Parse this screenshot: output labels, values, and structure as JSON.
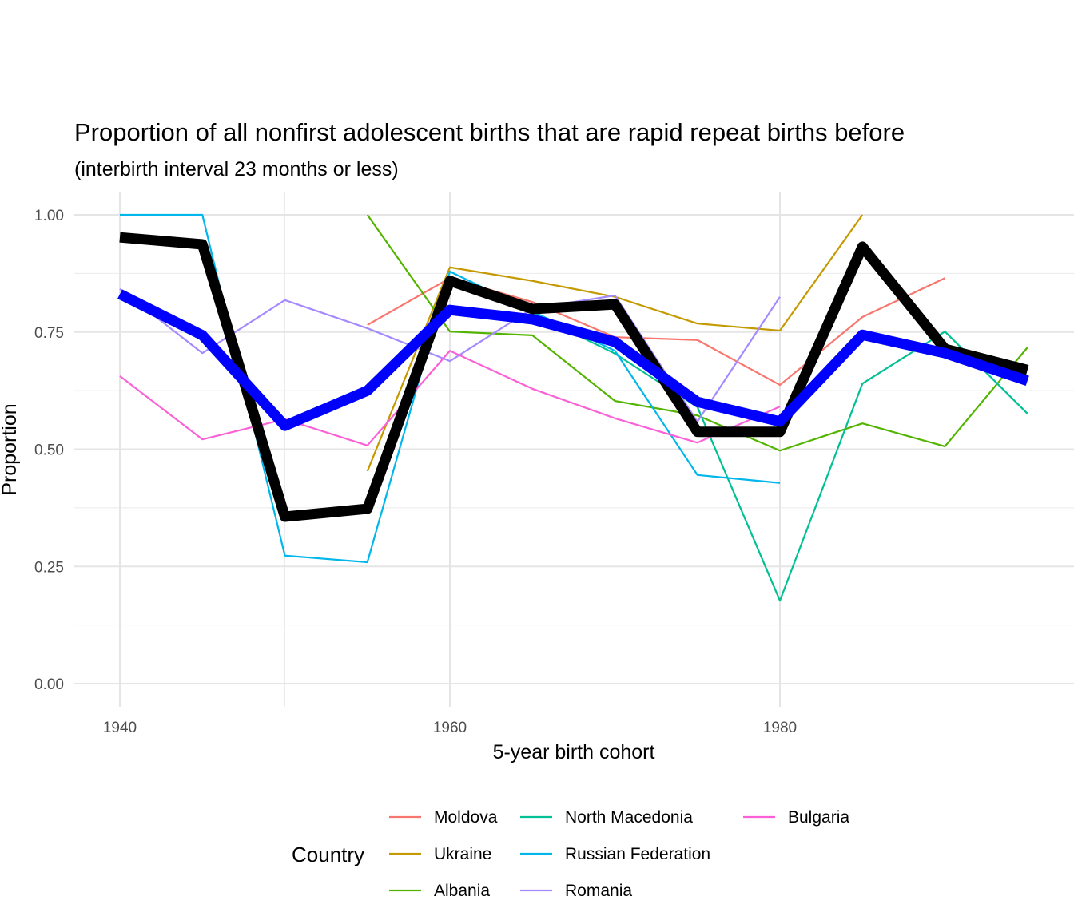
{
  "chart_data": {
    "type": "line",
    "title": "Proportion of all nonfirst adolescent births that are rapid repeat births before",
    "subtitle": "(interbirth interval 23 months or less)",
    "xlabel": "5-year birth cohort",
    "ylabel": "Proportion",
    "xlim": [
      1937,
      1998
    ],
    "ylim": [
      -0.05,
      1.05
    ],
    "xticks": [
      1940,
      1960,
      1980
    ],
    "xtick_labels": [
      "1940",
      "1960",
      "1980"
    ],
    "yticks": [
      0,
      0.25,
      0.5,
      0.75,
      1.0
    ],
    "ytick_labels": [
      "0.00",
      "0.25",
      "0.50",
      "0.75",
      "1.00"
    ],
    "grid": true,
    "legend": {
      "title": "Country",
      "placement": "bottom"
    },
    "series": [
      {
        "name": "Moldova",
        "color": "#F8766D",
        "x": [
          1955,
          1960,
          1965,
          1970,
          1975,
          1980,
          1985,
          1990
        ],
        "y": [
          0.765,
          0.865,
          0.814,
          0.739,
          0.733,
          0.637,
          0.782,
          0.865
        ]
      },
      {
        "name": "Ukraine",
        "color": "#C49A00",
        "x": [
          1955,
          1960,
          1965,
          1970,
          1975,
          1980,
          1985
        ],
        "y": [
          0.453,
          0.888,
          0.859,
          0.825,
          0.768,
          0.753,
          1.0
        ]
      },
      {
        "name": "Albania",
        "color": "#53B400",
        "x": [
          1955,
          1960,
          1965,
          1970,
          1975,
          1980,
          1985,
          1990,
          1995
        ],
        "y": [
          1.0,
          0.751,
          0.743,
          0.603,
          0.572,
          0.497,
          0.555,
          0.506,
          0.717
        ]
      },
      {
        "name": "North Macedonia",
        "color": "#00C094",
        "x": [
          1965,
          1970,
          1975,
          1980,
          1985,
          1990,
          1995
        ],
        "y": [
          0.79,
          0.704,
          0.59,
          0.177,
          0.64,
          0.751,
          0.576
        ]
      },
      {
        "name": "Russian Federation",
        "color": "#00B6EB",
        "x": [
          1940,
          1945,
          1950,
          1955,
          1960,
          1965,
          1970,
          1975,
          1980
        ],
        "y": [
          1.0,
          1.0,
          0.273,
          0.259,
          0.879,
          0.794,
          0.71,
          0.445,
          0.428
        ]
      },
      {
        "name": "Romania",
        "color": "#A58AFF",
        "x": [
          1940,
          1945,
          1950,
          1955,
          1960,
          1965,
          1970,
          1975,
          1980
        ],
        "y": [
          0.842,
          0.705,
          0.818,
          0.758,
          0.688,
          0.8,
          0.828,
          0.559,
          0.825
        ]
      },
      {
        "name": "Bulgaria",
        "color": "#FB61D7",
        "x": [
          1940,
          1945,
          1950,
          1955,
          1960,
          1965,
          1970,
          1975,
          1980
        ],
        "y": [
          0.656,
          0.521,
          0.564,
          0.508,
          0.71,
          0.629,
          0.566,
          0.514,
          0.591
        ]
      },
      {
        "color": "#000000",
        "x": [
          1940,
          1945,
          1950,
          1955,
          1960,
          1965,
          1970,
          1975,
          1980,
          1985,
          1990,
          1995
        ],
        "y": [
          0.952,
          0.937,
          0.356,
          0.373,
          0.859,
          0.799,
          0.809,
          0.537,
          0.537,
          0.932,
          0.714,
          0.669
        ]
      },
      {
        "color": "#0000FF",
        "x": [
          1940,
          1945,
          1950,
          1955,
          1960,
          1965,
          1970,
          1975,
          1980,
          1985,
          1990,
          1995
        ],
        "y": [
          0.831,
          0.743,
          0.55,
          0.625,
          0.797,
          0.777,
          0.729,
          0.601,
          0.559,
          0.744,
          0.705,
          0.646
        ]
      }
    ]
  }
}
